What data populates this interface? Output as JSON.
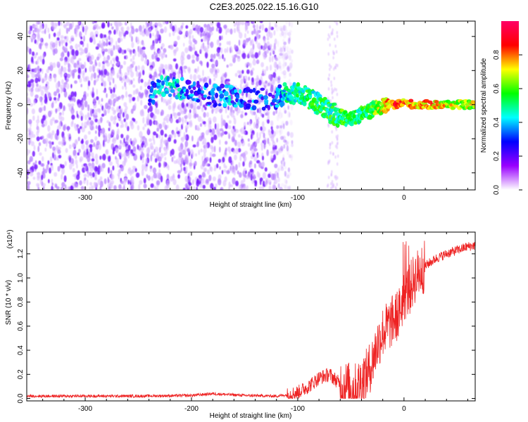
{
  "title": "C2E3.2025.022.15.16.G10",
  "chart_data": [
    {
      "type": "heatmap",
      "xlabel": "Height of straight line (km)",
      "ylabel": "Frequency (Hz)",
      "xlim": [
        -355,
        67
      ],
      "ylim": [
        -50,
        49
      ],
      "xticks": [
        -300,
        -200,
        -100,
        0
      ],
      "yticks": [
        -40,
        -20,
        0,
        20,
        40
      ],
      "xtick_labels": [
        "-300",
        "-200",
        "-100",
        "0"
      ],
      "ytick_labels": [
        "-40",
        "-20",
        "0",
        "20",
        "40"
      ],
      "colorbar": {
        "label": "Normalized spectral amplitude",
        "range": [
          0.0,
          1.0
        ],
        "ticks": [
          0.0,
          0.2,
          0.4,
          0.6,
          0.8
        ],
        "tick_labels": [
          "0.0",
          "0.2",
          "0.4",
          "0.6",
          "0.8"
        ],
        "colors": [
          "#ffffff",
          "#9900ff",
          "#0000ff",
          "#00ffff",
          "#00ff00",
          "#ffff00",
          "#ff0000",
          "#ff0066"
        ]
      },
      "signal_track": {
        "x": [
          -240,
          -225,
          -200,
          -180,
          -160,
          -140,
          -120,
          -110,
          -100,
          -90,
          -80,
          -70,
          -60,
          -50,
          -40,
          -30,
          -20,
          -10,
          0,
          10,
          20,
          40,
          67
        ],
        "y": [
          5,
          12,
          8,
          5,
          5,
          3,
          4,
          7,
          6,
          4,
          0,
          -4,
          -7,
          -9,
          -6,
          -3,
          -1,
          0,
          1,
          0,
          0,
          0,
          0
        ],
        "amplitude": [
          0.3,
          0.45,
          0.3,
          0.3,
          0.35,
          0.3,
          0.3,
          0.45,
          0.5,
          0.5,
          0.5,
          0.5,
          0.55,
          0.5,
          0.5,
          0.55,
          0.7,
          0.85,
          0.8,
          0.75,
          0.75,
          0.7,
          0.65
        ]
      },
      "noise_extent_x": [
        -355,
        -120
      ]
    },
    {
      "type": "line",
      "xlabel": "Height of straight line (km)",
      "ylabel": "SNR (10 * v/v)",
      "y_multiplier": "(x10⁴)",
      "xlim": [
        -355,
        67
      ],
      "ylim": [
        -0.02,
        1.38
      ],
      "xticks": [
        -300,
        -200,
        -100,
        0
      ],
      "yticks": [
        0.0,
        0.2,
        0.4,
        0.6,
        0.8,
        1.0,
        1.2
      ],
      "xtick_labels": [
        "-300",
        "-200",
        "-100",
        "0"
      ],
      "ytick_labels": [
        "0.0",
        "0.2",
        "0.4",
        "0.6",
        "0.8",
        "1.0",
        "1.2"
      ],
      "color": "#ee2222",
      "series": [
        {
          "x": [
            -355,
            -300,
            -250,
            -200,
            -180,
            -150,
            -120,
            -110,
            -100,
            -90,
            -80,
            -70,
            -60,
            -50,
            -45,
            -40,
            -35,
            -30,
            -25,
            -20,
            -15,
            -10,
            -5,
            0,
            5,
            10,
            15,
            20,
            30,
            40,
            50,
            60,
            67
          ],
          "y": [
            0.02,
            0.02,
            0.02,
            0.025,
            0.04,
            0.025,
            0.02,
            0.03,
            0.05,
            0.1,
            0.17,
            0.2,
            0.12,
            0.08,
            0.08,
            0.15,
            0.2,
            0.3,
            0.45,
            0.55,
            0.6,
            0.65,
            0.7,
            0.85,
            0.9,
            1.0,
            1.05,
            1.1,
            1.16,
            1.2,
            1.23,
            1.26,
            1.27
          ]
        }
      ]
    }
  ]
}
